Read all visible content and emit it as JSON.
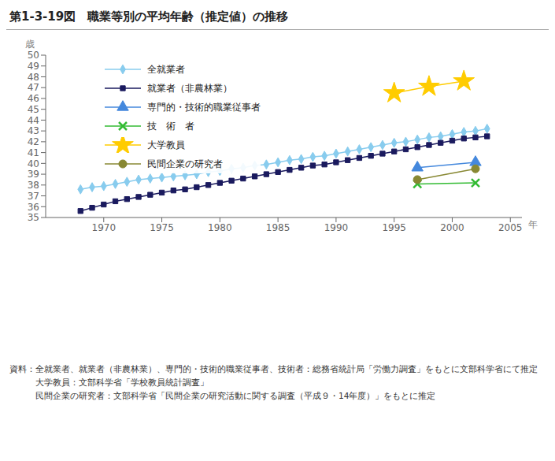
{
  "chart_data": {
    "type": "line",
    "title": "第1-3-19図　職業等別の平均年齢（推定値）の推移",
    "x_label": "年",
    "y_label": "歳",
    "xlim": [
      1965,
      2006
    ],
    "ylim": [
      35,
      50
    ],
    "xticks": [
      1970,
      1975,
      1980,
      1985,
      1990,
      1995,
      2000,
      2005
    ],
    "yticks": [
      35,
      36,
      37,
      38,
      39,
      40,
      41,
      42,
      43,
      44,
      45,
      46,
      47,
      48,
      49,
      50
    ],
    "grid": false,
    "legend": "upper left",
    "series": [
      {
        "name": "全就業者",
        "color": "#88CCEE",
        "marker": "diamond",
        "x": [
          1968,
          1969,
          1970,
          1971,
          1972,
          1973,
          1974,
          1975,
          1976,
          1977,
          1978,
          1979,
          1980,
          1981,
          1982,
          1983,
          1984,
          1985,
          1986,
          1987,
          1988,
          1989,
          1990,
          1991,
          1992,
          1993,
          1994,
          1995,
          1996,
          1997,
          1998,
          1999,
          2000,
          2001,
          2002,
          2003
        ],
        "values": [
          37.6,
          37.8,
          37.9,
          38.1,
          38.3,
          38.5,
          38.6,
          38.7,
          38.8,
          38.9,
          39.0,
          39.2,
          39.3,
          39.5,
          39.6,
          39.8,
          39.9,
          40.1,
          40.3,
          40.4,
          40.6,
          40.7,
          40.9,
          41.1,
          41.3,
          41.5,
          41.7,
          41.9,
          42.0,
          42.2,
          42.4,
          42.5,
          42.7,
          42.9,
          43.0,
          43.2
        ]
      },
      {
        "name": "就業者（非農林業）",
        "color": "#1a1a5e",
        "marker": "square",
        "x": [
          1968,
          1969,
          1970,
          1971,
          1972,
          1973,
          1974,
          1975,
          1976,
          1977,
          1978,
          1979,
          1980,
          1981,
          1982,
          1983,
          1984,
          1985,
          1986,
          1987,
          1988,
          1989,
          1990,
          1991,
          1992,
          1993,
          1994,
          1995,
          1996,
          1997,
          1998,
          1999,
          2000,
          2001,
          2002,
          2003
        ],
        "values": [
          35.6,
          35.9,
          36.2,
          36.5,
          36.7,
          36.9,
          37.1,
          37.3,
          37.5,
          37.6,
          37.8,
          38.0,
          38.2,
          38.4,
          38.6,
          38.8,
          39.0,
          39.2,
          39.4,
          39.6,
          39.8,
          39.9,
          40.1,
          40.3,
          40.5,
          40.7,
          40.9,
          41.1,
          41.3,
          41.5,
          41.7,
          41.9,
          42.1,
          42.3,
          42.4,
          42.5
        ]
      },
      {
        "name": "専門的・技術的職業従事者",
        "color": "#4488DD",
        "marker": "triangle",
        "x": [
          1997,
          2002
        ],
        "values": [
          39.6,
          40.1
        ]
      },
      {
        "name": "技　術　者",
        "color": "#33BB33",
        "marker": "x",
        "x": [
          1997,
          2002
        ],
        "values": [
          38.1,
          38.2
        ]
      },
      {
        "name": "大学教員",
        "color": "#FFCC00",
        "marker": "star",
        "x": [
          1995,
          1998,
          2001
        ],
        "values": [
          46.5,
          47.1,
          47.6
        ]
      },
      {
        "name": "民間企業の研究者",
        "color": "#888833",
        "marker": "circle",
        "x": [
          1997,
          2002
        ],
        "values": [
          38.5,
          39.5
        ]
      }
    ],
    "annotations": [
      "資料：全就業者、就業者（非農林業）、専門的・技術的職業従事者、技術者：総務省統計局「労働力調査」をもとに文部科学省にて推定",
      "　　　大学教員：文部科学省「学校教員統計調査」",
      "　　　民間企業の研究者：文部科学省「民間企業の研究活動に関する調査（平成９・14年度）」をもとに推定"
    ]
  }
}
